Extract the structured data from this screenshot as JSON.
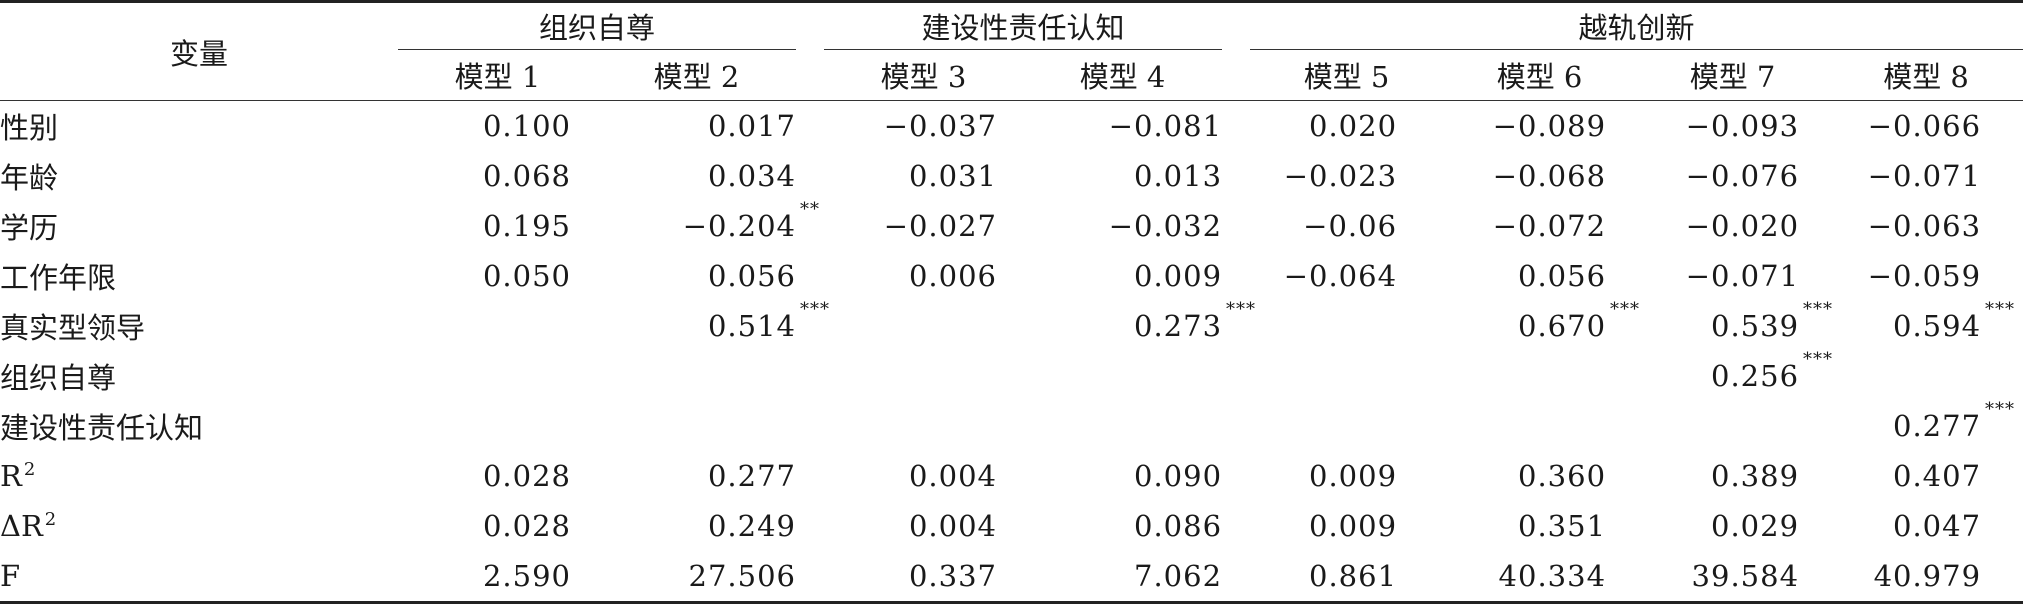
{
  "header": {
    "variable": "变量",
    "groups": [
      "组织自尊",
      "建设性责任认知",
      "越轨创新"
    ],
    "models": [
      "模型 1",
      "模型 2",
      "模型 3",
      "模型 4",
      "模型 5",
      "模型 6",
      "模型 7",
      "模型 8"
    ]
  },
  "rows": [
    {
      "label": "性别",
      "cells": [
        {
          "v": "0.100",
          "s": ""
        },
        {
          "v": "0.017",
          "s": ""
        },
        {
          "v": "−0.037",
          "s": ""
        },
        {
          "v": "−0.081",
          "s": ""
        },
        {
          "v": "0.020",
          "s": ""
        },
        {
          "v": "−0.089",
          "s": ""
        },
        {
          "v": "−0.093",
          "s": ""
        },
        {
          "v": "−0.066",
          "s": ""
        }
      ]
    },
    {
      "label": "年龄",
      "cells": [
        {
          "v": "0.068",
          "s": ""
        },
        {
          "v": "0.034",
          "s": ""
        },
        {
          "v": "0.031",
          "s": ""
        },
        {
          "v": "0.013",
          "s": ""
        },
        {
          "v": "−0.023",
          "s": ""
        },
        {
          "v": "−0.068",
          "s": ""
        },
        {
          "v": "−0.076",
          "s": ""
        },
        {
          "v": "−0.071",
          "s": ""
        }
      ]
    },
    {
      "label": "学历",
      "cells": [
        {
          "v": "0.195",
          "s": ""
        },
        {
          "v": "−0.204",
          "s": "**"
        },
        {
          "v": "−0.027",
          "s": ""
        },
        {
          "v": "−0.032",
          "s": ""
        },
        {
          "v": "−0.06",
          "s": ""
        },
        {
          "v": "−0.072",
          "s": ""
        },
        {
          "v": "−0.020",
          "s": ""
        },
        {
          "v": "−0.063",
          "s": ""
        }
      ]
    },
    {
      "label": "工作年限",
      "cells": [
        {
          "v": "0.050",
          "s": ""
        },
        {
          "v": "0.056",
          "s": ""
        },
        {
          "v": "0.006",
          "s": ""
        },
        {
          "v": "0.009",
          "s": ""
        },
        {
          "v": "−0.064",
          "s": ""
        },
        {
          "v": "0.056",
          "s": ""
        },
        {
          "v": "−0.071",
          "s": ""
        },
        {
          "v": "−0.059",
          "s": ""
        }
      ]
    },
    {
      "label": "真实型领导",
      "cells": [
        {
          "v": "",
          "s": ""
        },
        {
          "v": "0.514",
          "s": "***"
        },
        {
          "v": "",
          "s": ""
        },
        {
          "v": "0.273",
          "s": "***"
        },
        {
          "v": "",
          "s": ""
        },
        {
          "v": "0.670",
          "s": "***"
        },
        {
          "v": "0.539",
          "s": "***"
        },
        {
          "v": "0.594",
          "s": "***"
        }
      ]
    },
    {
      "label": "组织自尊",
      "cells": [
        {
          "v": "",
          "s": ""
        },
        {
          "v": "",
          "s": ""
        },
        {
          "v": "",
          "s": ""
        },
        {
          "v": "",
          "s": ""
        },
        {
          "v": "",
          "s": ""
        },
        {
          "v": "",
          "s": ""
        },
        {
          "v": "0.256",
          "s": "***"
        },
        {
          "v": "",
          "s": ""
        }
      ]
    },
    {
      "label": "建设性责任认知",
      "cells": [
        {
          "v": "",
          "s": ""
        },
        {
          "v": "",
          "s": ""
        },
        {
          "v": "",
          "s": ""
        },
        {
          "v": "",
          "s": ""
        },
        {
          "v": "",
          "s": ""
        },
        {
          "v": "",
          "s": ""
        },
        {
          "v": "",
          "s": ""
        },
        {
          "v": "0.277",
          "s": "***"
        }
      ]
    },
    {
      "label": "R",
      "sup": "2",
      "cells": [
        {
          "v": "0.028",
          "s": ""
        },
        {
          "v": "0.277",
          "s": ""
        },
        {
          "v": "0.004",
          "s": ""
        },
        {
          "v": "0.090",
          "s": ""
        },
        {
          "v": "0.009",
          "s": ""
        },
        {
          "v": "0.360",
          "s": ""
        },
        {
          "v": "0.389",
          "s": ""
        },
        {
          "v": "0.407",
          "s": ""
        }
      ]
    },
    {
      "label": "ΔR",
      "sup": "2",
      "cells": [
        {
          "v": "0.028",
          "s": ""
        },
        {
          "v": "0.249",
          "s": ""
        },
        {
          "v": "0.004",
          "s": ""
        },
        {
          "v": "0.086",
          "s": ""
        },
        {
          "v": "0.009",
          "s": ""
        },
        {
          "v": "0.351",
          "s": ""
        },
        {
          "v": "0.029",
          "s": ""
        },
        {
          "v": "0.047",
          "s": ""
        }
      ]
    },
    {
      "label": "F",
      "cells": [
        {
          "v": "2.590",
          "s": ""
        },
        {
          "v": "27.506",
          "s": ""
        },
        {
          "v": "0.337",
          "s": ""
        },
        {
          "v": "7.062",
          "s": ""
        },
        {
          "v": "0.861",
          "s": ""
        },
        {
          "v": "40.334",
          "s": ""
        },
        {
          "v": "39.584",
          "s": ""
        },
        {
          "v": "40.979",
          "s": ""
        }
      ]
    }
  ]
}
